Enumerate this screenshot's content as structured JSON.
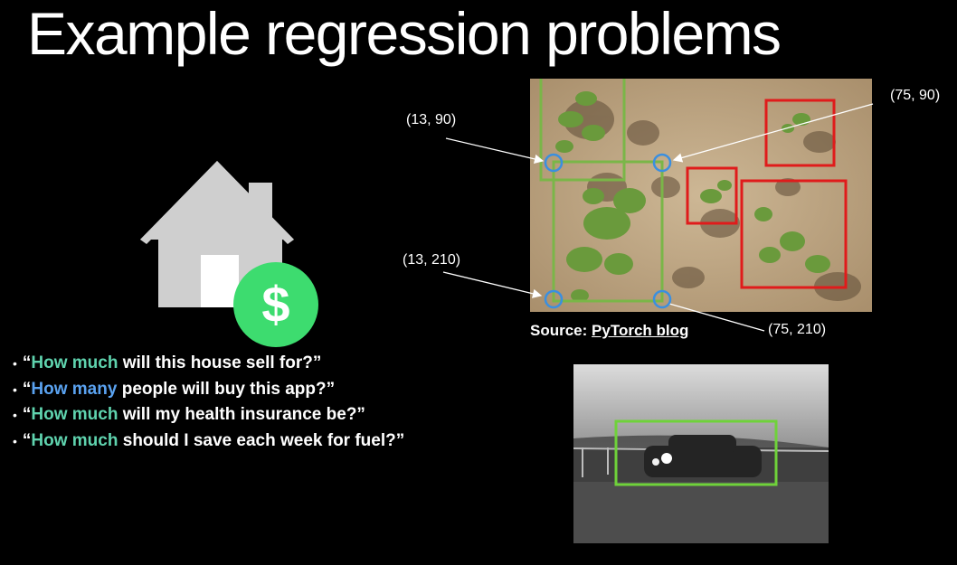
{
  "slide": {
    "title": "Example regression problems"
  },
  "house_icon": {
    "icon": "house-with-dollar-icon",
    "dollar_symbol": "$",
    "house_color": "#cfcfcf",
    "dollar_color": "#3ddc6f"
  },
  "questions": [
    {
      "open": "“",
      "highlight": "How much",
      "rest": " will this house sell for?”",
      "highlight_color": "green"
    },
    {
      "open": "“",
      "highlight": "How many",
      "rest": " people will buy this app?”",
      "highlight_color": "blue"
    },
    {
      "open": "“",
      "highlight": "How much",
      "rest": " will my health insurance be?”",
      "highlight_color": "green"
    },
    {
      "open": "“",
      "highlight": "How much",
      "rest": " should I save each week for fuel?”",
      "highlight_color": "green"
    }
  ],
  "bullet_marker": "•",
  "crop_image": {
    "coordinates": {
      "top_left": "(13, 90)",
      "top_right": "(75, 90)",
      "bottom_left": "(13, 210)",
      "bottom_right": "(75, 210)"
    },
    "source_prefix": "Source: ",
    "source_link": "PyTorch blog",
    "box_colors": {
      "green": "#7ab648",
      "red": "#e01b1b",
      "corner": "#3a8fe0"
    }
  },
  "car_image": {
    "box_color": "#6fd23a"
  }
}
